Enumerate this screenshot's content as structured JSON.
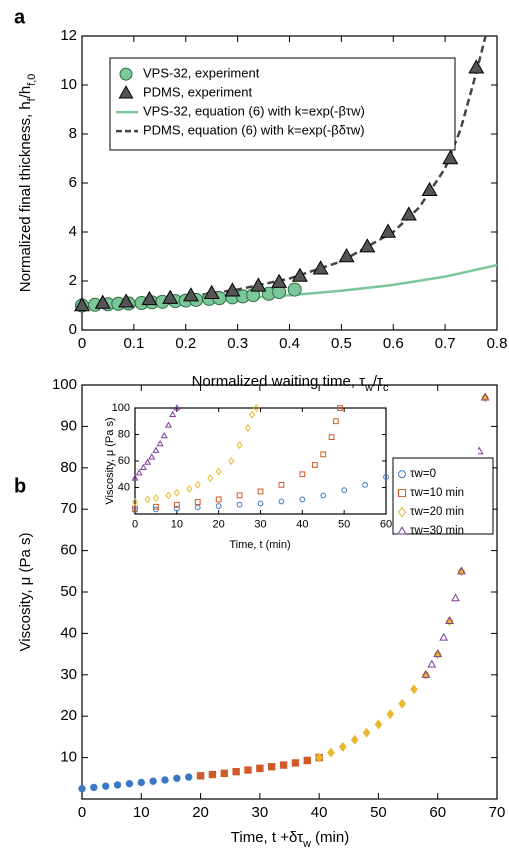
{
  "chart_data": [
    {
      "type": "scatter",
      "label": "a",
      "xlabel": [
        "Normalized waiting time, τ",
        "w",
        "/τ",
        "c"
      ],
      "ylabel": [
        "Normalized final thickness, h",
        "f",
        "/h",
        "f,0"
      ],
      "xlim": [
        0,
        0.8
      ],
      "xticks": [
        0,
        0.1,
        0.2,
        0.3,
        0.4,
        0.5,
        0.6,
        0.7,
        0.8
      ],
      "ylim": [
        0,
        12
      ],
      "yticks": [
        0,
        2,
        4,
        6,
        8,
        10,
        12
      ],
      "legend": "upper left",
      "series": [
        {
          "name": "VPS-32, experiment",
          "color": "#7cc79a",
          "marker": "circle",
          "filled": true,
          "x": [
            0,
            0.025,
            0.05,
            0.07,
            0.09,
            0.115,
            0.135,
            0.155,
            0.18,
            0.2,
            0.22,
            0.245,
            0.265,
            0.29,
            0.31,
            0.33,
            0.36,
            0.38,
            0.41
          ],
          "values": [
            1.0,
            1.03,
            1.05,
            1.07,
            1.08,
            1.1,
            1.13,
            1.15,
            1.18,
            1.2,
            1.23,
            1.27,
            1.3,
            1.33,
            1.37,
            1.42,
            1.48,
            1.55,
            1.65
          ]
        },
        {
          "name": "PDMS, experiment",
          "color": "#555555",
          "marker": "triangle",
          "filled": true,
          "x": [
            0,
            0.04,
            0.085,
            0.13,
            0.17,
            0.21,
            0.25,
            0.29,
            0.34,
            0.38,
            0.42,
            0.46,
            0.51,
            0.55,
            0.59,
            0.63,
            0.67,
            0.71,
            0.76
          ],
          "values": [
            1.0,
            1.1,
            1.15,
            1.25,
            1.3,
            1.4,
            1.5,
            1.6,
            1.8,
            1.95,
            2.2,
            2.5,
            3.0,
            3.4,
            4.0,
            4.7,
            5.7,
            7.0,
            10.7
          ]
        },
        {
          "name": "VPS-32, equation (6) with k=exp(-βτw)",
          "color": "#7cc79a",
          "line": "solid",
          "x": [
            0,
            0.1,
            0.2,
            0.3,
            0.4,
            0.5,
            0.6,
            0.7,
            0.8
          ],
          "values": [
            1.0,
            1.08,
            1.17,
            1.28,
            1.42,
            1.6,
            1.84,
            2.18,
            2.65
          ]
        },
        {
          "name": "PDMS, equation (6) with k=exp(-βδτw)",
          "color": "#444444",
          "line": "dashed",
          "x": [
            0,
            0.1,
            0.2,
            0.3,
            0.4,
            0.5,
            0.6,
            0.65,
            0.7,
            0.73,
            0.76,
            0.778
          ],
          "values": [
            1.0,
            1.15,
            1.35,
            1.65,
            2.1,
            2.8,
            4.0,
            5.0,
            6.6,
            8.2,
            10.5,
            12
          ]
        }
      ]
    },
    {
      "type": "scatter",
      "label": "b",
      "xlabel": [
        "Time, t +δτ",
        "w",
        " (min)"
      ],
      "ylabel": [
        "Viscosity, μ (Pa s)"
      ],
      "xlim": [
        0,
        70
      ],
      "xticks": [
        0,
        10,
        20,
        30,
        40,
        50,
        60,
        70
      ],
      "ylim": [
        0,
        100
      ],
      "yticks": [
        10,
        20,
        30,
        40,
        50,
        60,
        70,
        80,
        90,
        100
      ],
      "series": [
        {
          "color": "#3a78c3",
          "marker": "circle",
          "filled": true,
          "x": [
            0,
            2,
            4,
            6,
            8,
            10,
            12,
            14,
            16,
            18,
            20
          ],
          "values": [
            2.5,
            2.8,
            3.1,
            3.4,
            3.7,
            4.0,
            4.3,
            4.6,
            5.0,
            5.3,
            5.6
          ]
        },
        {
          "color": "#d05a2a",
          "marker": "square",
          "filled": true,
          "x": [
            20,
            22,
            24,
            26,
            28,
            30,
            32,
            34,
            36,
            38,
            40
          ],
          "values": [
            5.6,
            5.9,
            6.2,
            6.6,
            7.0,
            7.4,
            7.8,
            8.2,
            8.7,
            9.3,
            10.0
          ]
        },
        {
          "color": "#e8b830",
          "marker": "diamond",
          "filled": true,
          "x": [
            40,
            42,
            44,
            46,
            48,
            50,
            52,
            54,
            56,
            58,
            60,
            62,
            64,
            66,
            68
          ],
          "values": [
            10.0,
            11.2,
            12.6,
            14.3,
            16.0,
            18.0,
            20.5,
            23.0,
            26.5,
            30.0,
            35.0,
            43.0,
            55.0,
            72.0,
            97.0
          ]
        },
        {
          "color": "#7b3a9a",
          "marker": "triangle",
          "filled": false,
          "x": [
            58,
            59,
            60,
            61,
            62,
            63,
            64,
            65,
            66,
            67,
            68
          ],
          "values": [
            30.0,
            32.5,
            35.0,
            39.0,
            43.0,
            48.5,
            55.0,
            62.5,
            72.0,
            84.0,
            97.0
          ]
        }
      ]
    },
    {
      "type": "scatter",
      "inset": true,
      "xlabel": [
        "Time, t (min)"
      ],
      "ylabel": [
        "Viscosity, μ (Pa s)"
      ],
      "xlim": [
        0,
        60
      ],
      "xticks": [
        0,
        10,
        20,
        30,
        40,
        50,
        60
      ],
      "ylim": [
        20,
        100
      ],
      "yticks": [
        40,
        60,
        80,
        100
      ],
      "legend": "right",
      "series": [
        {
          "name": "τw=0",
          "color": "#3a78c3",
          "marker": "circle",
          "filled": false,
          "x": [
            0,
            5,
            10,
            15,
            20,
            25,
            30,
            35,
            40,
            45,
            50,
            55,
            60
          ],
          "values": [
            23,
            23.5,
            24,
            25,
            26,
            27,
            28,
            29.5,
            31,
            34,
            38,
            42,
            48
          ]
        },
        {
          "name": "τw=10 min",
          "color": "#d05a2a",
          "marker": "square",
          "filled": false,
          "x": [
            0,
            5,
            10,
            15,
            20,
            25,
            30,
            35,
            40,
            43,
            45,
            47,
            48,
            49
          ],
          "values": [
            24,
            25.5,
            27,
            29,
            31,
            34,
            37,
            42,
            50,
            57,
            65,
            78,
            90,
            100
          ]
        },
        {
          "name": "τw=20 min",
          "color": "#e8b830",
          "marker": "diamond",
          "filled": false,
          "x": [
            0,
            3,
            5,
            8,
            10,
            13,
            15,
            18,
            20,
            23,
            25,
            27,
            28,
            29
          ],
          "values": [
            29,
            31,
            32,
            34,
            36,
            39,
            42,
            47,
            52,
            60,
            72,
            85,
            95,
            100
          ]
        },
        {
          "name": "τw=30 min",
          "color": "#7b3a9a",
          "marker": "triangle",
          "filled": false,
          "x": [
            0,
            1,
            2,
            3,
            4,
            5,
            6,
            7,
            8,
            9,
            10
          ],
          "values": [
            47,
            51,
            55,
            59,
            63,
            68,
            73,
            79,
            87,
            95,
            100
          ]
        }
      ]
    }
  ]
}
